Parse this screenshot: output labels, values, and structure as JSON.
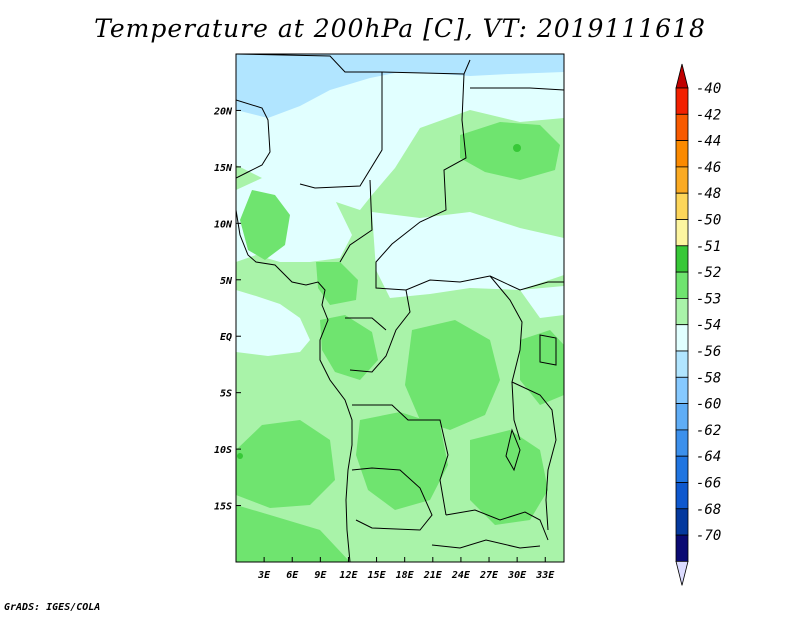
{
  "map": {
    "title": "Temperature at 200hPa [C], VT: 2019111618",
    "credit": "GrADS: IGES/COLA",
    "lon_range": [
      0,
      35
    ],
    "lat_range": [
      -20,
      25
    ],
    "lon_ticks": [
      "3E",
      "6E",
      "9E",
      "12E",
      "15E",
      "18E",
      "21E",
      "24E",
      "27E",
      "30E",
      "33E"
    ],
    "lon_tick_values": [
      3,
      6,
      9,
      12,
      15,
      18,
      21,
      24,
      27,
      30,
      33
    ],
    "lat_ticks": [
      "20N",
      "15N",
      "10N",
      "5N",
      "EQ",
      "5S",
      "10S",
      "15S"
    ],
    "lat_tick_values": [
      20,
      15,
      10,
      5,
      0,
      -5,
      -10,
      -15
    ]
  },
  "colorbar": {
    "levels": [
      "-40",
      "-42",
      "-44",
      "-46",
      "-48",
      "-50",
      "-51",
      "-52",
      "-53",
      "-54",
      "-56",
      "-58",
      "-60",
      "-62",
      "-64",
      "-66",
      "-68",
      "-70"
    ],
    "colors": [
      "#f22000",
      "#f85a00",
      "#fb8a00",
      "#fbaa22",
      "#fdd65a",
      "#fdf5a0",
      "#37c837",
      "#6fe46f",
      "#a9f3a9",
      "#e1ffff",
      "#b1e5ff",
      "#86c9ff",
      "#5fadf6",
      "#3c90ec",
      "#2075e1",
      "#0e58ce",
      "#04399e",
      "#0a0a73"
    ],
    "top_arrow_color": "#c00000",
    "bottom_arrow_color": "#dcdcff"
  }
}
